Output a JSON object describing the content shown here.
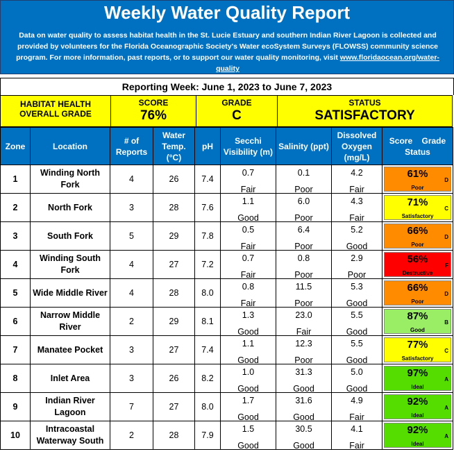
{
  "header": {
    "title": "Weekly Water Quality Report",
    "description": "Data on water quality to assess habitat health in the St. Lucie Estuary and southern Indian River Lagoon is collected and provided by volunteers for the Florida Oceanographic Society's Water ecoSystem Surveys (FLOWSS) community science program.  For more information, past reports, or to support our water quality monitoring, visit",
    "link_text": "www.floridaocean.org/water-quality"
  },
  "reporting_week": "Reporting Week: June 1, 2023 to June 7, 2023",
  "summary": {
    "habitat_label": "HABITAT HEALTH OVERALL GRADE",
    "score_label": "SCORE",
    "score_value": "76%",
    "grade_label": "GRADE",
    "grade_value": "C",
    "status_label": "STATUS",
    "status_value": "SATISFACTORY"
  },
  "columns": [
    "Zone",
    "Location",
    "# of Reports",
    "Water Temp. (°C)",
    "pH",
    "Secchi Visibility (m)",
    "Salinity (ppt)",
    "Dissolved Oxygen (mg/L)",
    "Score",
    "Grade",
    "Status"
  ],
  "colors": {
    "banner": "#0070c0",
    "summary": "#ffff00",
    "Poor": "#ff8c00",
    "Satisfactory": "#ffff00",
    "Destructive": "#ff0000",
    "Good": "#99ee66",
    "Ideal": "#55dd00"
  },
  "rows": [
    {
      "zone": "1",
      "location": "Winding North Fork",
      "reports": "4",
      "temp": "26",
      "ph": "7.4",
      "secchi": "0.7",
      "secchi_q": "Fair",
      "salinity": "0.1",
      "salinity_q": "Poor",
      "do": "4.2",
      "do_q": "Fair",
      "score": "61%",
      "grade": "D",
      "status": "Poor"
    },
    {
      "zone": "2",
      "location": "North Fork",
      "reports": "3",
      "temp": "28",
      "ph": "7.6",
      "secchi": "1.1",
      "secchi_q": "Good",
      "salinity": "6.0",
      "salinity_q": "Poor",
      "do": "4.3",
      "do_q": "Fair",
      "score": "71%",
      "grade": "C",
      "status": "Satisfactory"
    },
    {
      "zone": "3",
      "location": "South Fork",
      "reports": "5",
      "temp": "29",
      "ph": "7.8",
      "secchi": "0.5",
      "secchi_q": "Fair",
      "salinity": "6.4",
      "salinity_q": "Poor",
      "do": "5.2",
      "do_q": "Good",
      "score": "66%",
      "grade": "D",
      "status": "Poor"
    },
    {
      "zone": "4",
      "location": "Winding South Fork",
      "reports": "4",
      "temp": "27",
      "ph": "7.2",
      "secchi": "0.7",
      "secchi_q": "Fair",
      "salinity": "0.8",
      "salinity_q": "Poor",
      "do": "2.9",
      "do_q": "Poor",
      "score": "56%",
      "grade": "F",
      "status": "Destructive"
    },
    {
      "zone": "5",
      "location": "Wide Middle River",
      "reports": "4",
      "temp": "28",
      "ph": "8.0",
      "secchi": "0.8",
      "secchi_q": "Fair",
      "salinity": "11.5",
      "salinity_q": "Poor",
      "do": "5.3",
      "do_q": "Good",
      "score": "66%",
      "grade": "D",
      "status": "Poor"
    },
    {
      "zone": "6",
      "location": "Narrow Middle River",
      "reports": "2",
      "temp": "29",
      "ph": "8.1",
      "secchi": "1.3",
      "secchi_q": "Good",
      "salinity": "23.0",
      "salinity_q": "Fair",
      "do": "5.5",
      "do_q": "Good",
      "score": "87%",
      "grade": "B",
      "status": "Good"
    },
    {
      "zone": "7",
      "location": "Manatee Pocket",
      "reports": "3",
      "temp": "27",
      "ph": "7.4",
      "secchi": "1.1",
      "secchi_q": "Good",
      "salinity": "12.3",
      "salinity_q": "Poor",
      "do": "5.5",
      "do_q": "Good",
      "score": "77%",
      "grade": "C",
      "status": "Satisfactory"
    },
    {
      "zone": "8",
      "location": "Inlet Area",
      "reports": "3",
      "temp": "26",
      "ph": "8.2",
      "secchi": "1.0",
      "secchi_q": "Good",
      "salinity": "31.3",
      "salinity_q": "Good",
      "do": "5.0",
      "do_q": "Good",
      "score": "97%",
      "grade": "A",
      "status": "Ideal"
    },
    {
      "zone": "9",
      "location": "Indian River Lagoon",
      "reports": "7",
      "temp": "27",
      "ph": "8.0",
      "secchi": "1.7",
      "secchi_q": "Good",
      "salinity": "31.6",
      "salinity_q": "Good",
      "do": "4.9",
      "do_q": "Fair",
      "score": "92%",
      "grade": "A",
      "status": "Ideal"
    },
    {
      "zone": "10",
      "location": "Intracoastal Waterway South",
      "reports": "2",
      "temp": "28",
      "ph": "7.9",
      "secchi": "1.5",
      "secchi_q": "Good",
      "salinity": "30.5",
      "salinity_q": "Good",
      "do": "4.1",
      "do_q": "Fair",
      "score": "92%",
      "grade": "A",
      "status": "Ideal"
    }
  ]
}
